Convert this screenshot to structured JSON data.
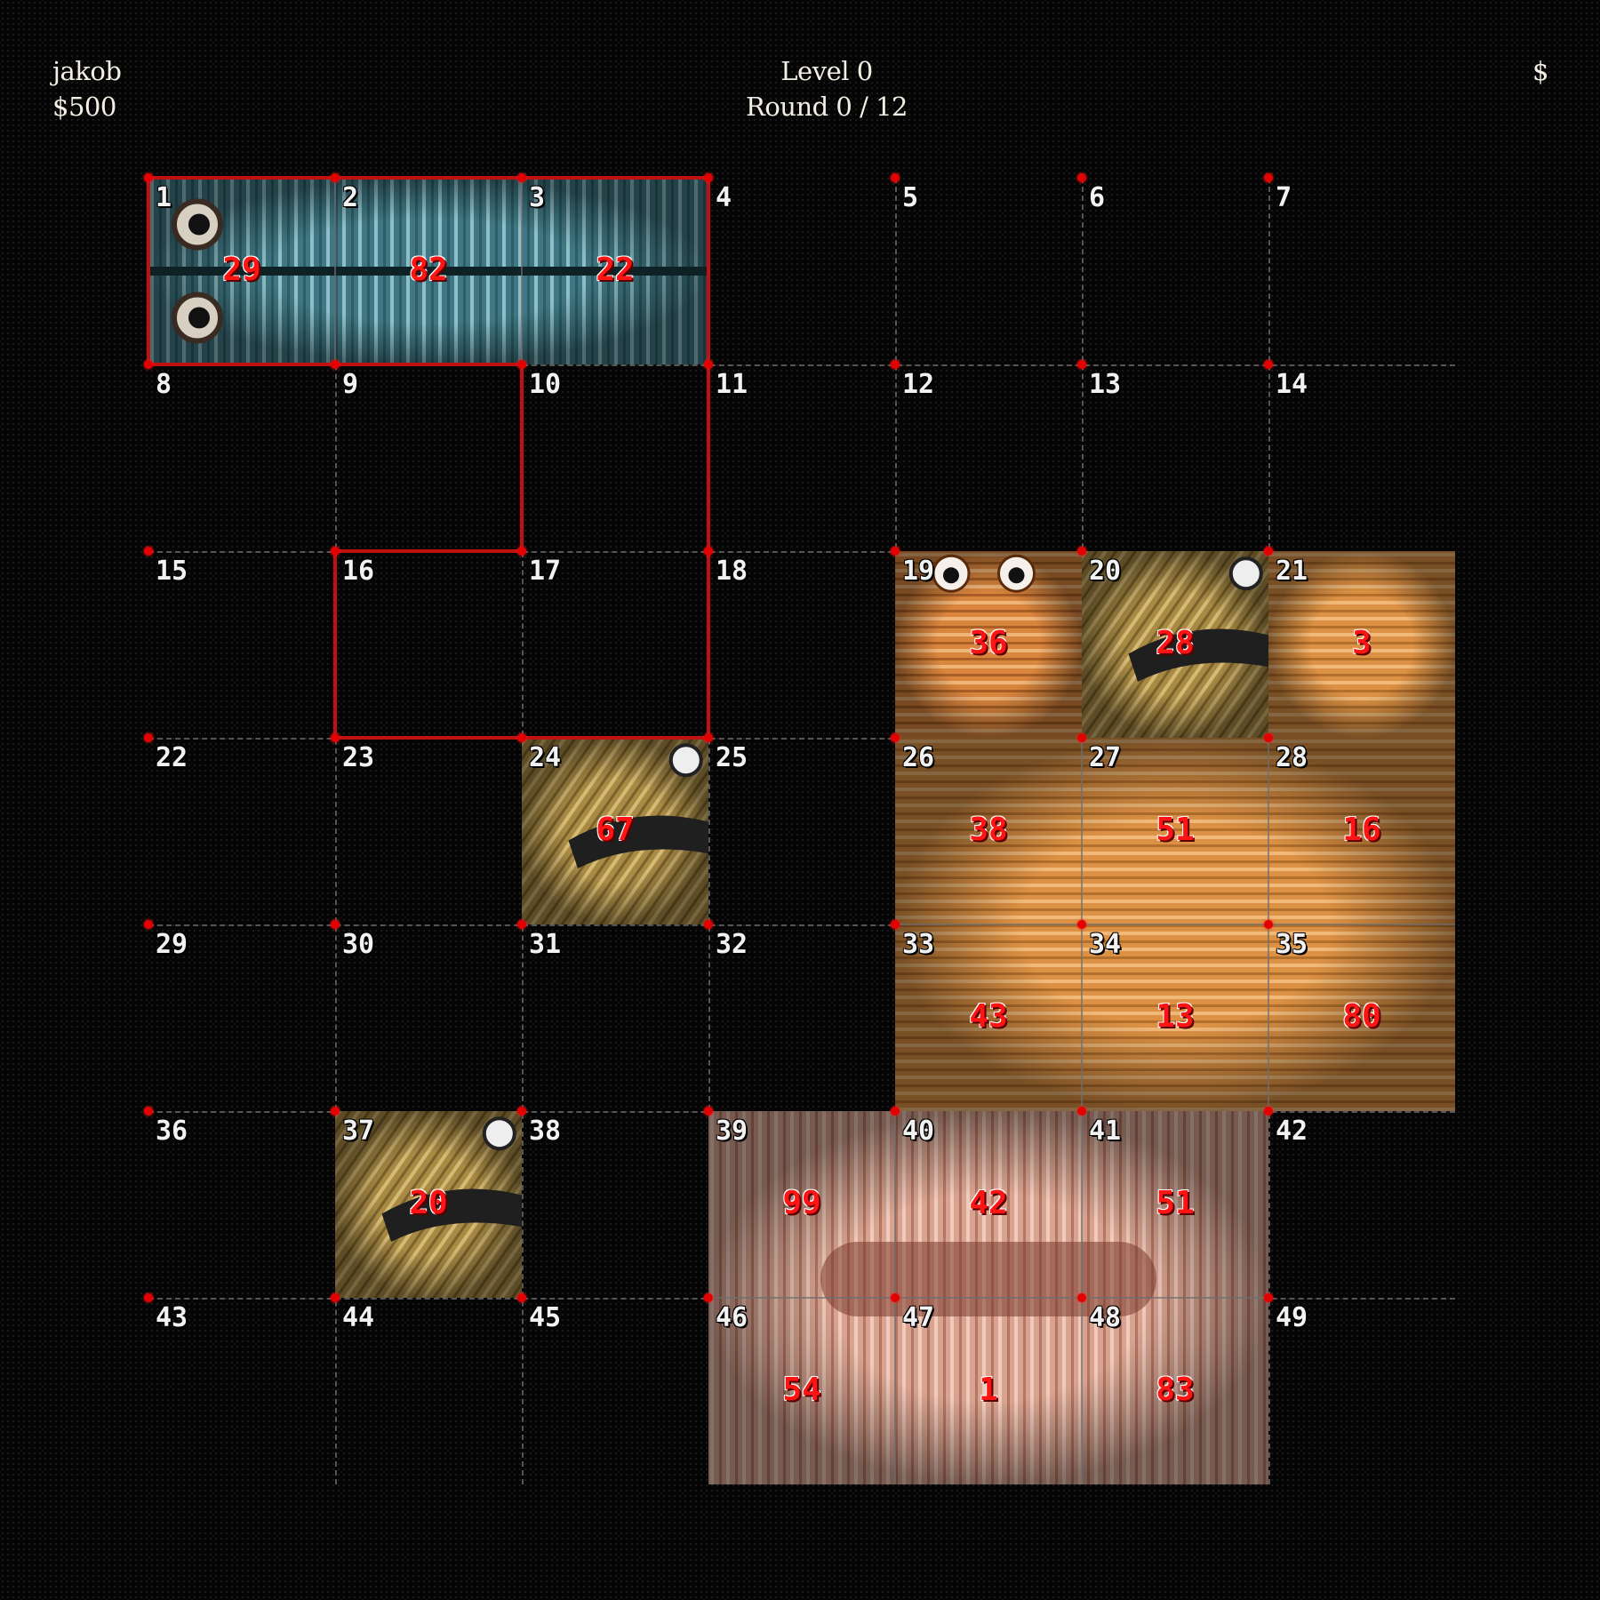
{
  "player": {
    "name": "jakob",
    "money": "$500"
  },
  "level": {
    "label": "Level 0",
    "round": "Round 0 / 12"
  },
  "top_right": {
    "symbol": "$"
  },
  "grid": {
    "columns": 7,
    "rows": 7,
    "cells": [
      "1",
      "2",
      "3",
      "4",
      "5",
      "6",
      "7",
      "8",
      "9",
      "10",
      "11",
      "12",
      "13",
      "14",
      "15",
      "16",
      "17",
      "18",
      "19",
      "20",
      "21",
      "22",
      "23",
      "24",
      "25",
      "26",
      "27",
      "28",
      "29",
      "30",
      "31",
      "32",
      "33",
      "34",
      "35",
      "36",
      "37",
      "38",
      "39",
      "40",
      "41",
      "42",
      "43",
      "44",
      "45",
      "46",
      "47",
      "48",
      "49"
    ]
  },
  "colors": {
    "background": "#050505",
    "grid_line": "#565656",
    "corner_dot": "#e30000",
    "selection_outline": "#c01010",
    "cell_number": "#f2f2f2",
    "tile_value": "#ff1414"
  },
  "selection_outline": {
    "cells": [
      "1",
      "2",
      "3",
      "4",
      "10",
      "11",
      "16",
      "17",
      "18",
      "9",
      "8"
    ]
  },
  "worms": [
    {
      "id": "blue-double-worm",
      "style": "blue",
      "cells": [
        1,
        2,
        3
      ],
      "values": [
        "29",
        "82",
        "22"
      ]
    },
    {
      "id": "orange-worm-19",
      "style": "orange-head",
      "cells": [
        19
      ],
      "values": [
        "36"
      ]
    },
    {
      "id": "olive-worm-20",
      "style": "olive",
      "cells": [
        20
      ],
      "values": [
        "28"
      ]
    },
    {
      "id": "orange-worm-21",
      "style": "orange",
      "cells": [
        21
      ],
      "values": [
        "3"
      ]
    },
    {
      "id": "olive-worm-24",
      "style": "olive",
      "cells": [
        24
      ],
      "values": [
        "67"
      ]
    },
    {
      "id": "orange-worm-body",
      "style": "orange",
      "cells": [
        26,
        27,
        28,
        33,
        34,
        35
      ],
      "values": [
        "38",
        "51",
        "16",
        "43",
        "13",
        "80"
      ]
    },
    {
      "id": "olive-worm-37",
      "style": "olive",
      "cells": [
        37
      ],
      "values": [
        "20"
      ]
    },
    {
      "id": "pink-ring-worm",
      "style": "pink",
      "cells": [
        39,
        40,
        41,
        46,
        47,
        48
      ],
      "values": [
        "99",
        "42",
        "51",
        "54",
        "1",
        "83"
      ]
    }
  ]
}
